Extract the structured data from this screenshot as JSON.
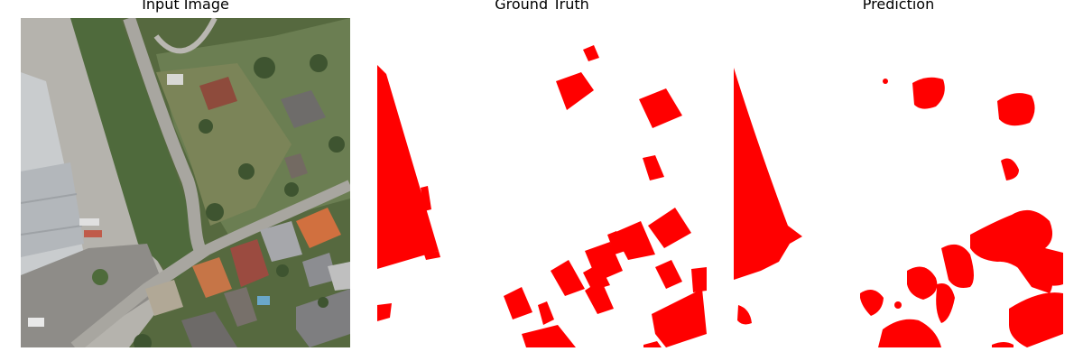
{
  "panels": [
    {
      "title": "Input Image"
    },
    {
      "title": "Ground Truth"
    },
    {
      "title": "Prediction"
    }
  ],
  "colors": {
    "mask": "#ff0000",
    "background": "#ffffff",
    "grass": "#5d7048",
    "road": "#a9a7a1",
    "roof_red": "#c0653f",
    "roof_grey": "#7a7a7a"
  }
}
